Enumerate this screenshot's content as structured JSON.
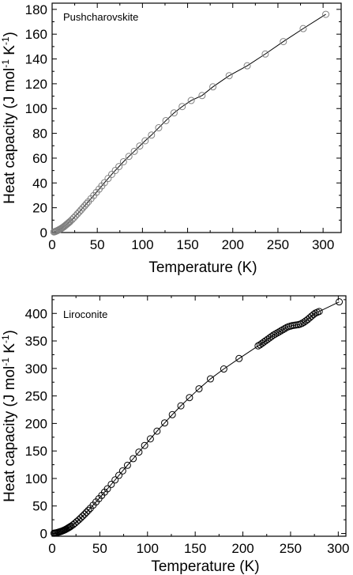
{
  "chart_data": [
    {
      "type": "scatter",
      "title": "Pushcharovskite",
      "xlabel": "Temperature (K)",
      "ylabel": "Heat capacity (J mol-1 K-1)",
      "xlim": [
        0,
        320
      ],
      "ylim": [
        0,
        185
      ],
      "xticks": [
        0,
        50,
        100,
        150,
        200,
        250,
        300
      ],
      "yticks": [
        0,
        20,
        40,
        60,
        80,
        100,
        120,
        140,
        160,
        180
      ],
      "grid": false,
      "series": [
        {
          "marker": "circle-open",
          "color": "#808080",
          "x": [
            2,
            3,
            4,
            5,
            6,
            7,
            8,
            9,
            10,
            11,
            12,
            13,
            14,
            15,
            16,
            17,
            18,
            19,
            20,
            22,
            24,
            26,
            28,
            30,
            32,
            34,
            36,
            38,
            40,
            43,
            46,
            49,
            52,
            55,
            58,
            62,
            66,
            70,
            74,
            79,
            85,
            91,
            97,
            103,
            110,
            118,
            126,
            135,
            144,
            154,
            166,
            178,
            196,
            216,
            236,
            256,
            278,
            303
          ],
          "y": [
            0.5,
            0.7,
            1.0,
            1.3,
            1.6,
            2.0,
            2.4,
            2.8,
            3.2,
            3.7,
            4.2,
            4.7,
            5.3,
            5.9,
            6.5,
            7.1,
            7.7,
            8.3,
            9.0,
            10.4,
            11.9,
            13.4,
            15.0,
            16.6,
            18.2,
            19.9,
            21.5,
            23.2,
            24.8,
            27.3,
            29.8,
            32.4,
            35.0,
            37.6,
            40.2,
            43.6,
            46.9,
            50.1,
            53.2,
            57.1,
            61.4,
            65.5,
            69.8,
            74.0,
            78.6,
            84.5,
            90.3,
            96.5,
            101.6,
            106.5,
            110.5,
            117.5,
            126.5,
            134.5,
            144.0,
            154.0,
            164.5,
            176.0
          ]
        }
      ],
      "fit_line": true
    },
    {
      "type": "scatter",
      "title": "Liroconite",
      "xlabel": "Temperature (K)",
      "ylabel": "Heat capacity (J mol-1 K-1)",
      "xlim": [
        0,
        308
      ],
      "ylim": [
        -5,
        432
      ],
      "xticks": [
        0,
        50,
        100,
        150,
        200,
        250,
        300
      ],
      "yticks": [
        0,
        50,
        100,
        150,
        200,
        250,
        300,
        350,
        400
      ],
      "grid": false,
      "series": [
        {
          "marker": "circle-open",
          "color": "#000000",
          "x": [
            2,
            3,
            4,
            5,
            6,
            7,
            8,
            9,
            10,
            11,
            12,
            13,
            14,
            15,
            16,
            17,
            18,
            19,
            20,
            22,
            24,
            26,
            28,
            30,
            32,
            34,
            36,
            38,
            40,
            43,
            46,
            49,
            52,
            55,
            58,
            62,
            66,
            70,
            74,
            79,
            85,
            91,
            97,
            103,
            110,
            118,
            126,
            135,
            144,
            154,
            166,
            180,
            196,
            216,
            218,
            220,
            222,
            224,
            226,
            228,
            230,
            232,
            234,
            236,
            238,
            240,
            242,
            244,
            246,
            248,
            250,
            252,
            254,
            256,
            258,
            260,
            262,
            264,
            266,
            268,
            270,
            272,
            274,
            276,
            278,
            280,
            301
          ],
          "y": [
            0.5,
            0.8,
            1.1,
            1.5,
            2.0,
            2.5,
            3.0,
            3.6,
            4.2,
            4.9,
            5.6,
            6.4,
            7.3,
            8.2,
            9.2,
            10.2,
            11.3,
            12.4,
            13.5,
            16.0,
            18.8,
            21.8,
            24.9,
            28.2,
            31.5,
            35.0,
            38.5,
            42.1,
            45.8,
            51.5,
            57.3,
            63.2,
            69.2,
            75.2,
            81.2,
            89.3,
            97.4,
            105.6,
            113.8,
            124.0,
            136.0,
            148.0,
            160.0,
            172.0,
            186.0,
            201.0,
            216.0,
            232.0,
            247.0,
            263.0,
            281.0,
            299.0,
            318.0,
            341.0,
            343.0,
            345.5,
            348.0,
            350.5,
            353.0,
            355.5,
            358.0,
            360.5,
            362.5,
            364.5,
            366.5,
            368.5,
            370.5,
            372.5,
            374.5,
            376.0,
            377.0,
            378.0,
            378.5,
            379.0,
            379.5,
            380.5,
            382.0,
            384.0,
            386.5,
            389.0,
            392.0,
            395.0,
            398.0,
            400.5,
            402.0,
            403.5,
            421.0
          ]
        }
      ],
      "fit_line": true
    }
  ]
}
